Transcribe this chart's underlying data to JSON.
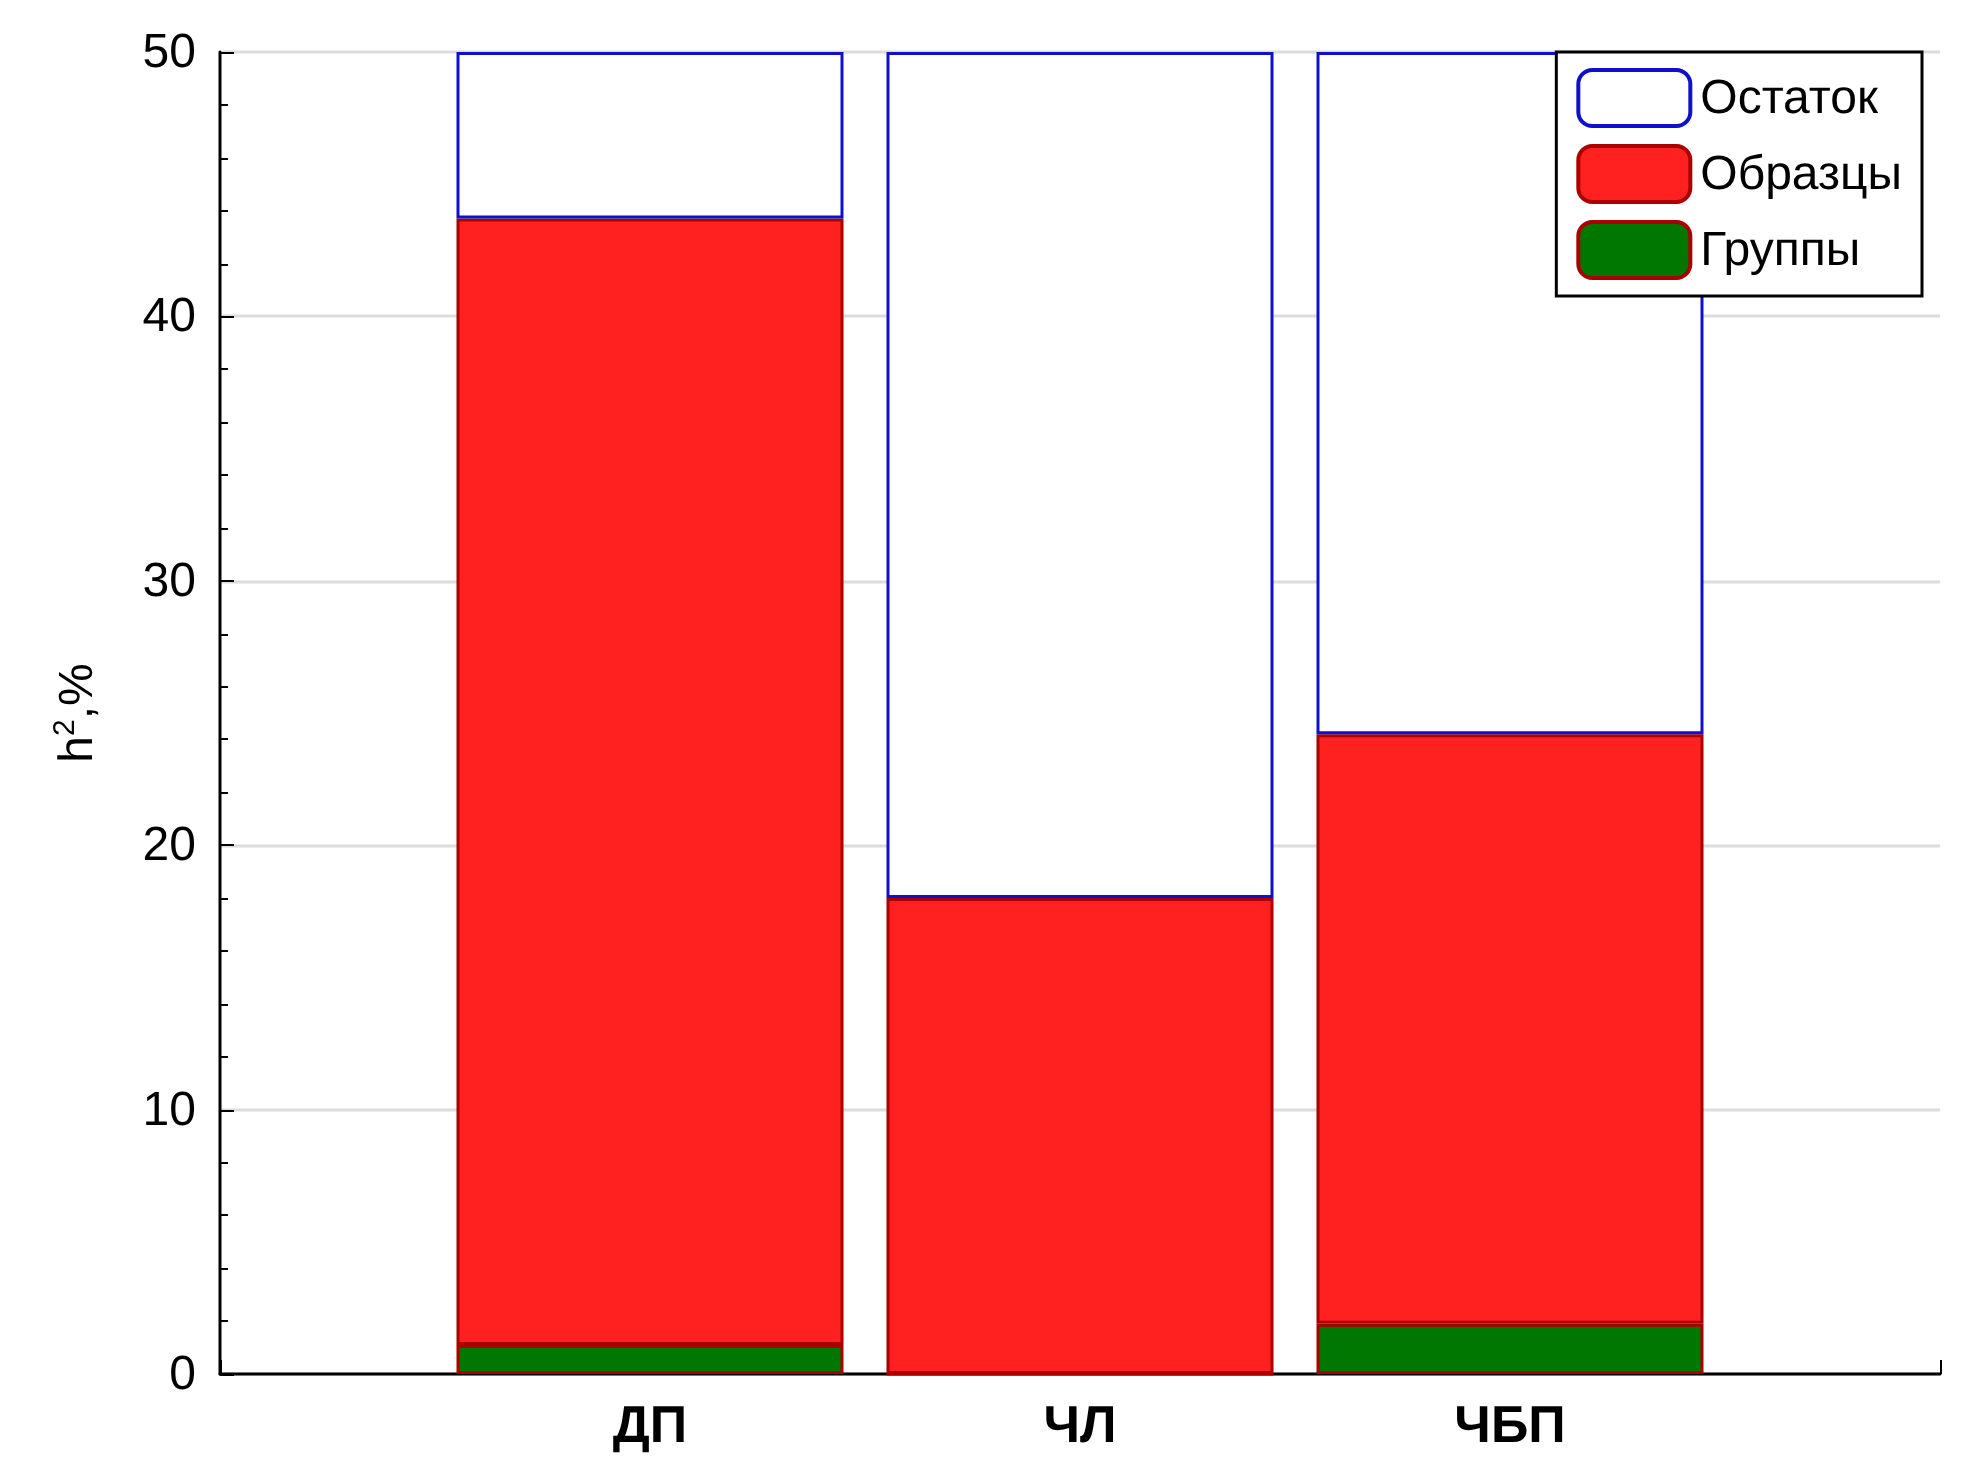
{
  "chart_data": {
    "type": "bar",
    "ylabel": "h$^{2}$,%",
    "categories": [
      "ДП",
      "ЧЛ",
      "ЧБП"
    ],
    "stacked": true,
    "series": [
      {
        "name": "Группы",
        "color": "#007700",
        "values": [
          1.1,
          0,
          1.9
        ]
      },
      {
        "name": "Образцы",
        "color": "#ff2020",
        "values": [
          42.6,
          18.0,
          22.3
        ]
      },
      {
        "name": "Остаток",
        "color": "#ffffff",
        "values": [
          6.3,
          32.0,
          25.8
        ]
      }
    ],
    "ylim": [
      0,
      50
    ],
    "yticks": [
      0,
      10,
      20,
      30,
      40,
      50
    ],
    "grid": "y",
    "legend": "top right"
  }
}
